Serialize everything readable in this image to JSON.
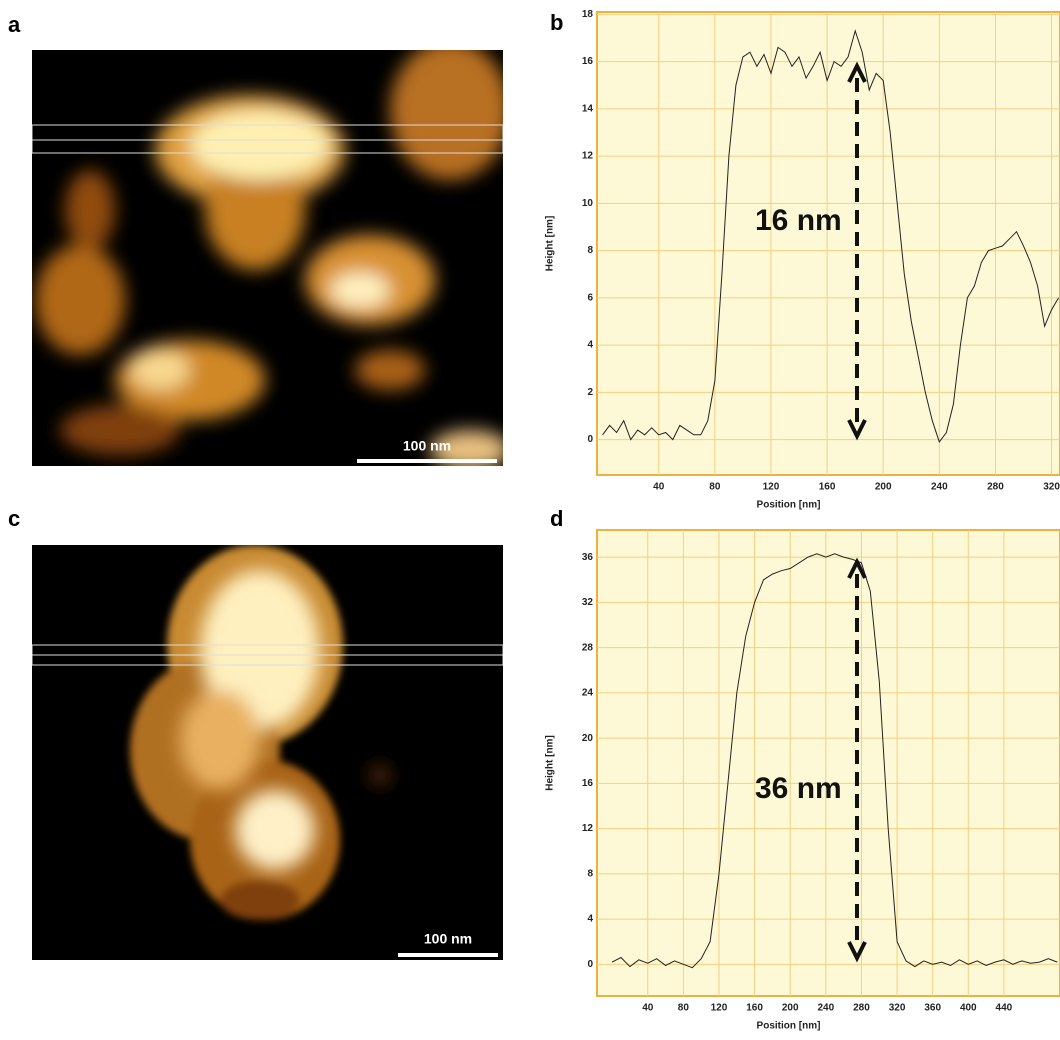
{
  "panels": {
    "a": "a",
    "b": "b",
    "c": "c",
    "d": "d",
    "scale_a": "100 nm",
    "scale_c": "100 nm"
  },
  "chart_data": [
    {
      "type": "line",
      "x_label": "Position [nm]",
      "y_label": "Height [nm]",
      "annotation": "16 nm",
      "background": "#fdf9d6",
      "grid_color": "#f6cf7e",
      "border_color": "#f0b040",
      "grid": true,
      "xlim": [
        -4,
        326
      ],
      "ylim": [
        -1.5,
        18.1
      ],
      "xticks": [
        40,
        80,
        120,
        160,
        200,
        240,
        280,
        320
      ],
      "yticks": [
        0,
        2,
        4,
        6,
        8,
        10,
        12,
        14,
        16,
        18
      ],
      "x": [
        0,
        5,
        10,
        15,
        20,
        25,
        30,
        35,
        40,
        45,
        50,
        55,
        60,
        65,
        70,
        75,
        80,
        85,
        90,
        95,
        100,
        105,
        110,
        115,
        120,
        125,
        130,
        135,
        140,
        145,
        150,
        155,
        160,
        165,
        170,
        175,
        180,
        185,
        190,
        195,
        200,
        205,
        210,
        215,
        220,
        225,
        230,
        235,
        240,
        245,
        250,
        255,
        260,
        265,
        270,
        275,
        280,
        285,
        290,
        295,
        300,
        305,
        310,
        315,
        320,
        325
      ],
      "series": [
        {
          "color": "#222222",
          "values": [
            0.2,
            0.6,
            0.3,
            0.8,
            0,
            0.4,
            0.2,
            0.5,
            0.2,
            0.3,
            0,
            0.6,
            0.4,
            0.2,
            0.2,
            0.8,
            2.5,
            7,
            12,
            15,
            16.2,
            16.4,
            15.8,
            16.3,
            15.5,
            16.6,
            16.4,
            15.8,
            16.2,
            15.3,
            15.8,
            16.4,
            15.2,
            16,
            15.8,
            16.2,
            17.3,
            16.4,
            14.8,
            15.5,
            15.2,
            13,
            10,
            7,
            5,
            3.5,
            2,
            0.8,
            -0.1,
            0.3,
            1.5,
            4,
            6,
            6.5,
            7.5,
            8,
            8.1,
            8.2,
            8.5,
            8.8,
            8.2,
            7.5,
            6.5,
            4.8,
            5.5,
            6
          ]
        }
      ]
    },
    {
      "type": "line",
      "x_label": "Position [nm]",
      "y_label": "Height [nm]",
      "annotation": "36 nm",
      "background": "#fdf9d6",
      "grid_color": "#f6cf7e",
      "border_color": "#f0b040",
      "grid": true,
      "xlim": [
        -17,
        503
      ],
      "ylim": [
        -2.8,
        38.4
      ],
      "xticks": [
        40,
        80,
        120,
        160,
        200,
        240,
        280,
        320,
        360,
        400,
        440
      ],
      "yticks": [
        0,
        4,
        8,
        12,
        16,
        20,
        24,
        28,
        32,
        36
      ],
      "x": [
        0,
        10,
        20,
        30,
        40,
        50,
        60,
        70,
        80,
        90,
        100,
        110,
        120,
        130,
        140,
        150,
        160,
        170,
        180,
        190,
        200,
        210,
        220,
        230,
        240,
        250,
        260,
        270,
        280,
        290,
        300,
        310,
        320,
        330,
        340,
        350,
        360,
        370,
        380,
        390,
        400,
        410,
        420,
        430,
        440,
        450,
        460,
        470,
        480,
        490,
        500
      ],
      "series": [
        {
          "color": "#222222",
          "values": [
            0.2,
            0.6,
            -0.2,
            0.4,
            0.1,
            0.5,
            -0.1,
            0.3,
            0,
            -0.3,
            0.5,
            2,
            8,
            16,
            24,
            29,
            32,
            34,
            34.5,
            34.8,
            35,
            35.5,
            36,
            36.3,
            36,
            36.3,
            36,
            35.8,
            35.5,
            33,
            25,
            12,
            2,
            0.3,
            -0.2,
            0.3,
            0,
            0.2,
            -0.1,
            0.4,
            0,
            0.3,
            -0.1,
            0.2,
            0.4,
            0,
            0.3,
            0.1,
            0.2,
            0.5,
            0.2
          ]
        }
      ]
    }
  ]
}
